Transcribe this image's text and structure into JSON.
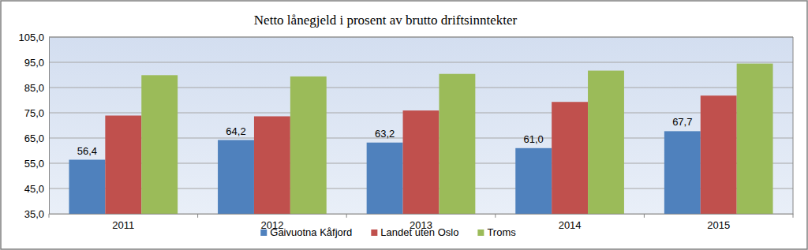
{
  "chart_data": {
    "type": "bar",
    "title": "Netto lånegjeld i prosent av brutto driftsinntekter",
    "categories": [
      "2011",
      "2012",
      "2013",
      "2014",
      "2015"
    ],
    "series": [
      {
        "name": "Gaivuotna Kåfjord",
        "color": "#4f81bd",
        "values": [
          56.4,
          64.2,
          63.2,
          61.0,
          67.7
        ],
        "value_labels": [
          "56,4",
          "64,2",
          "63,2",
          "61,0",
          "67,7"
        ],
        "data_labels": true
      },
      {
        "name": "Landet uten Oslo",
        "color": "#c0504d",
        "values": [
          73.9,
          73.6,
          75.9,
          79.3,
          81.8
        ]
      },
      {
        "name": "Troms",
        "color": "#9bbb59",
        "values": [
          89.9,
          89.4,
          90.4,
          91.7,
          94.5
        ]
      }
    ],
    "ylim": [
      35,
      105
    ],
    "yticks": [
      {
        "value": 35,
        "label": "35,0"
      },
      {
        "value": 45,
        "label": "45,0"
      },
      {
        "value": 55,
        "label": "55,0"
      },
      {
        "value": 65,
        "label": "65,0"
      },
      {
        "value": 75,
        "label": "75,0"
      },
      {
        "value": 85,
        "label": "85,0"
      },
      {
        "value": 95,
        "label": "95,0"
      },
      {
        "value": 105,
        "label": "105,0"
      }
    ],
    "grid": true,
    "legend": "bottom"
  }
}
